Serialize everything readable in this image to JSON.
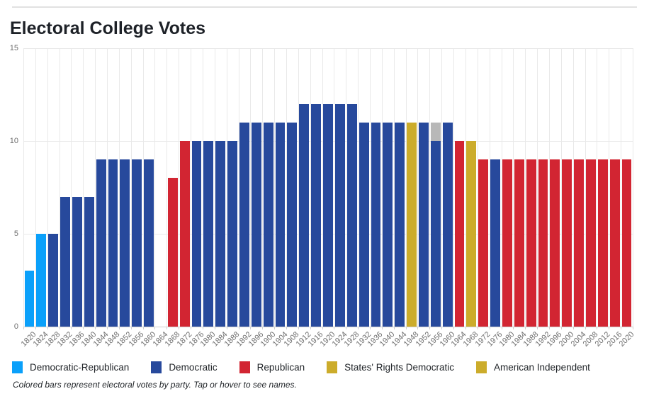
{
  "header": {
    "title": "Electoral College Votes"
  },
  "footnote": {
    "text": "Colored bars represent electoral votes by party. Tap or hover to see names."
  },
  "legend": {
    "items": [
      {
        "label": "Democratic-Republican",
        "color": "#0aa0fa"
      },
      {
        "label": "Democratic",
        "color": "#27499c"
      },
      {
        "label": "Republican",
        "color": "#d22532"
      },
      {
        "label": "States' Rights Democratic",
        "color": "#ccac2b"
      },
      {
        "label": "American Independent",
        "color": "#ccac2b"
      }
    ]
  },
  "chart_data": {
    "type": "bar",
    "title": "Electoral College Votes",
    "xlabel": "",
    "ylabel": "",
    "ylim": [
      0,
      15
    ],
    "yticks": [
      0,
      5,
      10,
      15
    ],
    "grid": true,
    "legend_position": "bottom",
    "x_tick_rotation": -45,
    "party_colors": {
      "Democratic-Republican": "#0aa0fa",
      "Democratic": "#27499c",
      "Republican": "#d22532",
      "States' Rights Democratic": "#ccac2b",
      "American Independent": "#ccac2b",
      "Other": "#b8b8b8"
    },
    "bars": [
      {
        "year": "1820",
        "segments": [
          {
            "party": "Democratic-Republican",
            "votes": 3
          }
        ]
      },
      {
        "year": "1824",
        "segments": [
          {
            "party": "Democratic-Republican",
            "votes": 5
          }
        ]
      },
      {
        "year": "1828",
        "segments": [
          {
            "party": "Democratic",
            "votes": 5
          }
        ]
      },
      {
        "year": "1832",
        "segments": [
          {
            "party": "Democratic",
            "votes": 7
          }
        ]
      },
      {
        "year": "1836",
        "segments": [
          {
            "party": "Democratic",
            "votes": 7
          }
        ]
      },
      {
        "year": "1840",
        "segments": [
          {
            "party": "Democratic",
            "votes": 7
          }
        ]
      },
      {
        "year": "1844",
        "segments": [
          {
            "party": "Democratic",
            "votes": 9
          }
        ]
      },
      {
        "year": "1848",
        "segments": [
          {
            "party": "Democratic",
            "votes": 9
          }
        ]
      },
      {
        "year": "1852",
        "segments": [
          {
            "party": "Democratic",
            "votes": 9
          }
        ]
      },
      {
        "year": "1856",
        "segments": [
          {
            "party": "Democratic",
            "votes": 9
          }
        ]
      },
      {
        "year": "1860",
        "segments": [
          {
            "party": "Democratic",
            "votes": 9
          }
        ]
      },
      {
        "year": "1864",
        "segments": []
      },
      {
        "year": "1868",
        "segments": [
          {
            "party": "Republican",
            "votes": 8
          }
        ]
      },
      {
        "year": "1872",
        "segments": [
          {
            "party": "Republican",
            "votes": 10
          }
        ]
      },
      {
        "year": "1876",
        "segments": [
          {
            "party": "Democratic",
            "votes": 10
          }
        ]
      },
      {
        "year": "1880",
        "segments": [
          {
            "party": "Democratic",
            "votes": 10
          }
        ]
      },
      {
        "year": "1884",
        "segments": [
          {
            "party": "Democratic",
            "votes": 10
          }
        ]
      },
      {
        "year": "1888",
        "segments": [
          {
            "party": "Democratic",
            "votes": 10
          }
        ]
      },
      {
        "year": "1892",
        "segments": [
          {
            "party": "Democratic",
            "votes": 11
          }
        ]
      },
      {
        "year": "1896",
        "segments": [
          {
            "party": "Democratic",
            "votes": 11
          }
        ]
      },
      {
        "year": "1900",
        "segments": [
          {
            "party": "Democratic",
            "votes": 11
          }
        ]
      },
      {
        "year": "1904",
        "segments": [
          {
            "party": "Democratic",
            "votes": 11
          }
        ]
      },
      {
        "year": "1908",
        "segments": [
          {
            "party": "Democratic",
            "votes": 11
          }
        ]
      },
      {
        "year": "1912",
        "segments": [
          {
            "party": "Democratic",
            "votes": 12
          }
        ]
      },
      {
        "year": "1916",
        "segments": [
          {
            "party": "Democratic",
            "votes": 12
          }
        ]
      },
      {
        "year": "1920",
        "segments": [
          {
            "party": "Democratic",
            "votes": 12
          }
        ]
      },
      {
        "year": "1924",
        "segments": [
          {
            "party": "Democratic",
            "votes": 12
          }
        ]
      },
      {
        "year": "1928",
        "segments": [
          {
            "party": "Democratic",
            "votes": 12
          }
        ]
      },
      {
        "year": "1932",
        "segments": [
          {
            "party": "Democratic",
            "votes": 11
          }
        ]
      },
      {
        "year": "1936",
        "segments": [
          {
            "party": "Democratic",
            "votes": 11
          }
        ]
      },
      {
        "year": "1940",
        "segments": [
          {
            "party": "Democratic",
            "votes": 11
          }
        ]
      },
      {
        "year": "1944",
        "segments": [
          {
            "party": "Democratic",
            "votes": 11
          }
        ]
      },
      {
        "year": "1948",
        "segments": [
          {
            "party": "States' Rights Democratic",
            "votes": 11
          }
        ]
      },
      {
        "year": "1952",
        "segments": [
          {
            "party": "Democratic",
            "votes": 11
          }
        ]
      },
      {
        "year": "1956",
        "segments": [
          {
            "party": "Democratic",
            "votes": 10
          },
          {
            "party": "Other",
            "votes": 1
          }
        ]
      },
      {
        "year": "1960",
        "segments": [
          {
            "party": "Democratic",
            "votes": 11
          }
        ]
      },
      {
        "year": "1964",
        "segments": [
          {
            "party": "Republican",
            "votes": 10
          }
        ]
      },
      {
        "year": "1968",
        "segments": [
          {
            "party": "American Independent",
            "votes": 10
          }
        ]
      },
      {
        "year": "1972",
        "segments": [
          {
            "party": "Republican",
            "votes": 9
          }
        ]
      },
      {
        "year": "1976",
        "segments": [
          {
            "party": "Democratic",
            "votes": 9
          }
        ]
      },
      {
        "year": "1980",
        "segments": [
          {
            "party": "Republican",
            "votes": 9
          }
        ]
      },
      {
        "year": "1984",
        "segments": [
          {
            "party": "Republican",
            "votes": 9
          }
        ]
      },
      {
        "year": "1988",
        "segments": [
          {
            "party": "Republican",
            "votes": 9
          }
        ]
      },
      {
        "year": "1992",
        "segments": [
          {
            "party": "Republican",
            "votes": 9
          }
        ]
      },
      {
        "year": "1996",
        "segments": [
          {
            "party": "Republican",
            "votes": 9
          }
        ]
      },
      {
        "year": "2000",
        "segments": [
          {
            "party": "Republican",
            "votes": 9
          }
        ]
      },
      {
        "year": "2004",
        "segments": [
          {
            "party": "Republican",
            "votes": 9
          }
        ]
      },
      {
        "year": "2008",
        "segments": [
          {
            "party": "Republican",
            "votes": 9
          }
        ]
      },
      {
        "year": "2012",
        "segments": [
          {
            "party": "Republican",
            "votes": 9
          }
        ]
      },
      {
        "year": "2016",
        "segments": [
          {
            "party": "Republican",
            "votes": 9
          }
        ]
      },
      {
        "year": "2020",
        "segments": [
          {
            "party": "Republican",
            "votes": 9
          }
        ]
      }
    ]
  }
}
